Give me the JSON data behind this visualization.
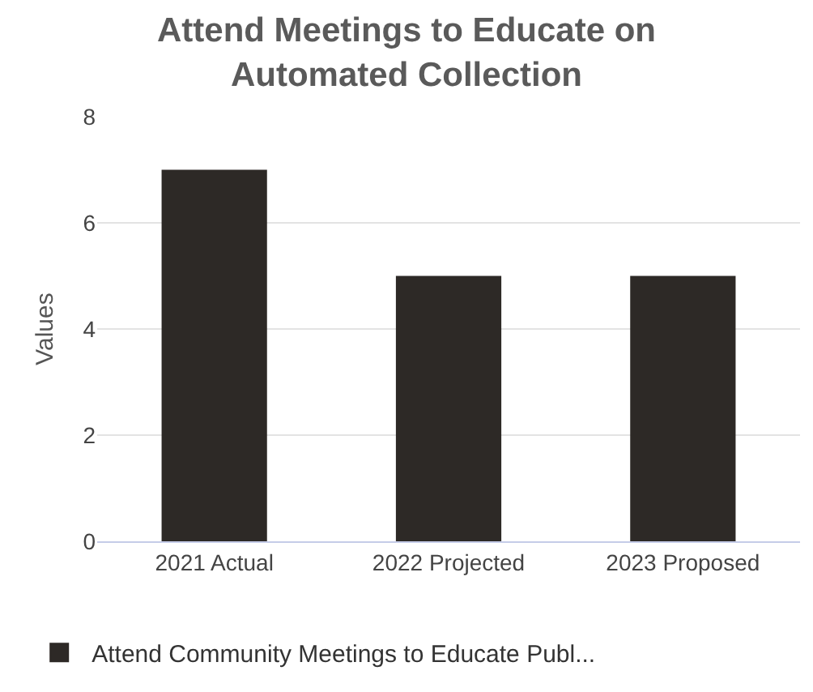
{
  "chart_data": {
    "type": "bar",
    "title": "Attend Meetings to Educate on Automated Collection",
    "ylabel": "Values",
    "categories": [
      "2021 Actual",
      "2022 Projected",
      "2023 Proposed"
    ],
    "series": [
      {
        "name": "Attend Community Meetings to Educate Publ...",
        "color": "#2d2926",
        "values": [
          7,
          5,
          5
        ]
      }
    ],
    "ylim": [
      0,
      8
    ],
    "yticks": [
      0,
      2,
      4,
      6,
      8
    ],
    "grid": "y",
    "legend": "bottom"
  }
}
